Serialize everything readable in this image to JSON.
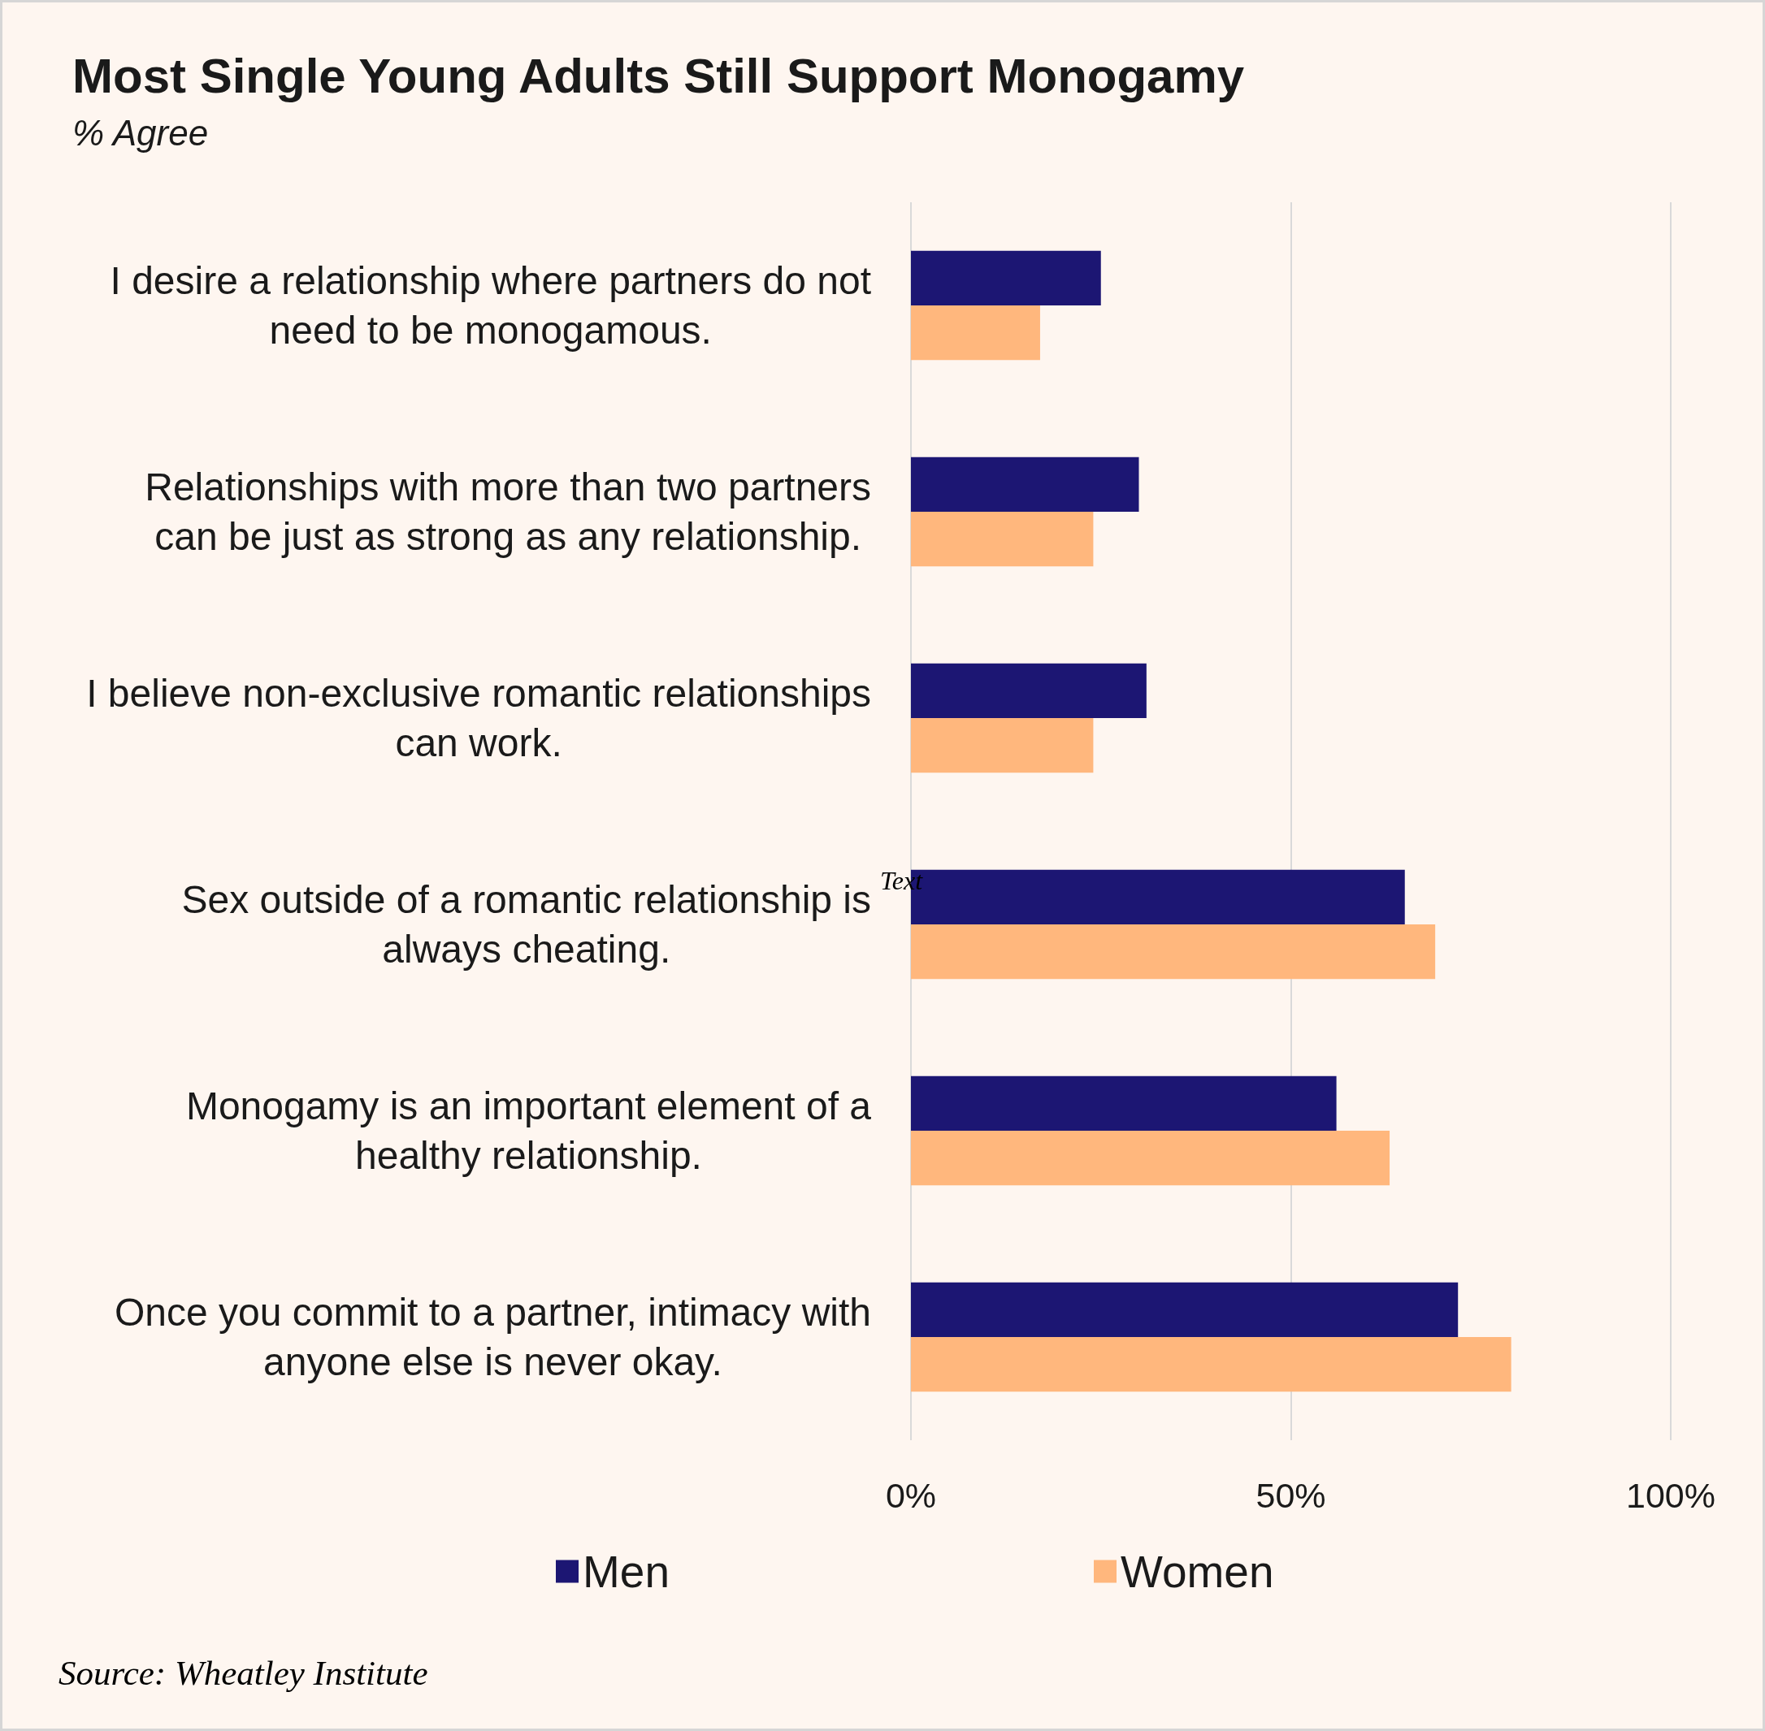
{
  "chart_data": {
    "type": "bar",
    "orientation": "horizontal",
    "title": "Most Single Young Adults Still Support Monogamy",
    "subtitle": "% Agree",
    "categories": [
      "I desire a relationship where partners do not need to be monogamous.",
      "Relationships with more than two partners can be just as strong as any relationship.",
      "I believe non-exclusive romantic relationships can work.",
      "Sex outside of a romantic relationship is always cheating.",
      "Monogamy is an important element of a healthy relationship.",
      "Once you commit to a partner, intimacy with anyone else is never okay."
    ],
    "series": [
      {
        "name": "Men",
        "color": "#1c1673",
        "values": [
          25,
          30,
          31,
          65,
          56,
          72
        ]
      },
      {
        "name": "Women",
        "color": "#ffb77d",
        "values": [
          17,
          24,
          24,
          69,
          63,
          79
        ]
      }
    ],
    "xlim": [
      0,
      100
    ],
    "xticks": [
      {
        "value": 0,
        "label": "0%"
      },
      {
        "value": 50,
        "label": "50%"
      },
      {
        "value": 100,
        "label": "100%"
      }
    ],
    "grid": "x",
    "legend": "bottom",
    "annotations": [
      "Text",
      "Source: Wheatley Institute"
    ]
  }
}
